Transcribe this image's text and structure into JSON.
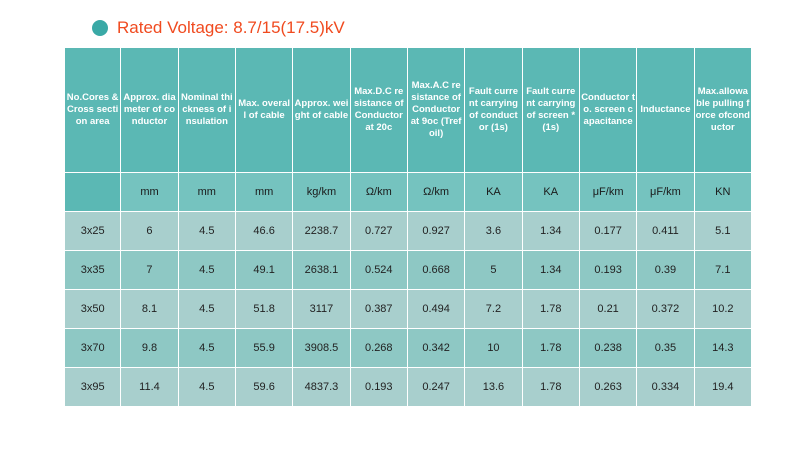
{
  "title": "Rated Voltage: 8.7/15(17.5)kV",
  "table": {
    "headers": [
      "No.Cores & Cross section area",
      "Approx. diameter of conductor",
      "Nominal thickness of insulation",
      "Max. overall of cable",
      "Approx. weight of cable",
      "Max.D.C resistance of Conductor at 20c",
      "Max.A.C resistance of Conductor at 9oc (Trefoil)",
      "Fault current carrying of conductor (1s)",
      "Fault current carrying of screen * (1s)",
      "Conductor to. screen capacitance",
      "Inductance",
      "Max.allowable pulling force ofconductor"
    ],
    "units": [
      "",
      "mm",
      "mm",
      "mm",
      "kg/km",
      "Ω/km",
      "Ω/km",
      "KA",
      "KA",
      "μF/km",
      "μF/km",
      "KN"
    ],
    "rows": [
      [
        "3x25",
        "6",
        "4.5",
        "46.6",
        "2238.7",
        "0.727",
        "0.927",
        "3.6",
        "1.34",
        "0.177",
        "0.411",
        "5.1"
      ],
      [
        "3x35",
        "7",
        "4.5",
        "49.1",
        "2638.1",
        "0.524",
        "0.668",
        "5",
        "1.34",
        "0.193",
        "0.39",
        "7.1"
      ],
      [
        "3x50",
        "8.1",
        "4.5",
        "51.8",
        "3117",
        "0.387",
        "0.494",
        "7.2",
        "1.78",
        "0.21",
        "0.372",
        "10.2"
      ],
      [
        "3x70",
        "9.8",
        "4.5",
        "55.9",
        "3908.5",
        "0.268",
        "0.342",
        "10",
        "1.78",
        "0.238",
        "0.35",
        "14.3"
      ],
      [
        "3x95",
        "11.4",
        "4.5",
        "59.6",
        "4837.3",
        "0.193",
        "0.247",
        "13.6",
        "1.78",
        "0.263",
        "0.334",
        "19.4"
      ]
    ]
  },
  "colors": {
    "title_text": "#f04a1f",
    "bullet": "#3aa9a6",
    "header_bg": "#5bb8b4",
    "units_bg": "#75c3bf",
    "row_light": "#a8cfcd",
    "row_dark": "#8ec8c4"
  }
}
